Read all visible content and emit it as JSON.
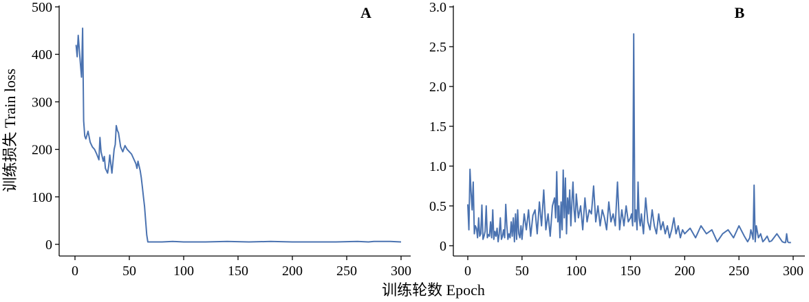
{
  "chart_data": [
    {
      "type": "line",
      "panel_label": "A",
      "ylabel": "训练损失 Train loss",
      "xlim": [
        0,
        300
      ],
      "ylim": [
        0,
        500
      ],
      "xticks": [
        0,
        50,
        100,
        150,
        200,
        250,
        300
      ],
      "yticks": [
        0,
        100,
        200,
        300,
        400,
        500
      ],
      "grid": false,
      "color": "#4a72b0",
      "x": [
        1,
        2,
        3,
        4,
        5,
        6,
        7,
        8,
        9,
        10,
        12,
        14,
        16,
        18,
        20,
        22,
        23,
        24,
        26,
        27,
        28,
        30,
        31,
        32,
        34,
        36,
        37,
        38,
        39,
        40,
        42,
        44,
        46,
        48,
        50,
        52,
        54,
        55,
        56,
        57,
        58,
        59,
        60,
        61,
        62,
        63,
        64,
        65,
        66,
        67,
        68,
        70,
        80,
        90,
        100,
        120,
        140,
        160,
        180,
        200,
        220,
        240,
        260,
        270,
        275,
        280,
        290,
        300
      ],
      "y": [
        420,
        395,
        440,
        410,
        380,
        352,
        455,
        260,
        228,
        222,
        238,
        215,
        205,
        200,
        190,
        178,
        225,
        195,
        175,
        185,
        160,
        150,
        165,
        188,
        150,
        200,
        210,
        250,
        240,
        235,
        205,
        195,
        208,
        200,
        195,
        190,
        180,
        175,
        170,
        160,
        175,
        165,
        155,
        140,
        120,
        100,
        80,
        50,
        20,
        5,
        5,
        5,
        5,
        6,
        5,
        5,
        6,
        5,
        6,
        5,
        5,
        5,
        6,
        5,
        6,
        6,
        6,
        5
      ]
    },
    {
      "type": "line",
      "panel_label": "B",
      "xlabel": "训练轮数 Epoch",
      "xlim": [
        0,
        300
      ],
      "ylim": [
        0,
        3.0
      ],
      "xticks": [
        0,
        50,
        100,
        150,
        200,
        250,
        300
      ],
      "yticks": [
        "0",
        "0.5",
        "1.0",
        "1.5",
        "2.0",
        "2.5",
        "3.0"
      ],
      "grid": false,
      "color": "#4a72b0",
      "x": [
        0,
        1,
        2,
        3,
        4,
        5,
        6,
        7,
        8,
        9,
        10,
        11,
        12,
        13,
        14,
        15,
        16,
        17,
        18,
        19,
        20,
        21,
        22,
        23,
        24,
        25,
        26,
        27,
        28,
        29,
        30,
        31,
        32,
        33,
        34,
        35,
        36,
        37,
        38,
        39,
        40,
        41,
        42,
        43,
        44,
        45,
        46,
        47,
        48,
        49,
        50,
        52,
        54,
        56,
        58,
        60,
        62,
        64,
        66,
        68,
        70,
        72,
        74,
        76,
        78,
        80,
        81,
        82,
        83,
        84,
        85,
        86,
        87,
        88,
        89,
        90,
        91,
        92,
        93,
        94,
        95,
        96,
        97,
        98,
        99,
        100,
        102,
        104,
        106,
        108,
        110,
        112,
        114,
        116,
        118,
        120,
        122,
        124,
        126,
        128,
        130,
        132,
        134,
        136,
        138,
        140,
        142,
        144,
        146,
        148,
        150,
        151,
        152,
        153,
        154,
        155,
        156,
        157,
        158,
        159,
        160,
        162,
        164,
        166,
        168,
        170,
        172,
        174,
        176,
        178,
        180,
        182,
        184,
        186,
        188,
        190,
        192,
        194,
        196,
        198,
        200,
        205,
        210,
        215,
        220,
        225,
        230,
        235,
        240,
        245,
        250,
        255,
        258,
        260,
        261,
        262,
        263,
        264,
        265,
        266,
        268,
        270,
        272,
        274,
        276,
        278,
        280,
        285,
        290,
        292,
        293,
        294,
        295,
        296,
        297,
        298
      ],
      "y": [
        0.52,
        0.2,
        0.96,
        0.68,
        0.45,
        0.8,
        0.15,
        0.25,
        0.22,
        0.1,
        0.35,
        0.12,
        0.15,
        0.51,
        0.08,
        0.12,
        0.18,
        0.5,
        0.1,
        0.14,
        0.12,
        0.3,
        0.1,
        0.45,
        0.08,
        0.18,
        0.12,
        0.22,
        0.05,
        0.15,
        0.35,
        0.08,
        0.12,
        0.2,
        0.1,
        0.52,
        0.25,
        0.08,
        0.15,
        0.1,
        0.3,
        0.12,
        0.35,
        0.05,
        0.4,
        0.08,
        0.45,
        0.15,
        0.1,
        0.25,
        0.08,
        0.4,
        0.2,
        0.45,
        0.12,
        0.38,
        0.45,
        0.15,
        0.55,
        0.25,
        0.7,
        0.2,
        0.4,
        0.12,
        0.5,
        0.6,
        0.35,
        0.93,
        0.3,
        0.5,
        0.1,
        0.55,
        0.2,
        0.95,
        0.35,
        0.85,
        0.15,
        0.6,
        0.4,
        0.7,
        0.25,
        0.55,
        0.8,
        0.45,
        0.3,
        0.65,
        0.35,
        0.5,
        0.2,
        0.6,
        0.3,
        0.45,
        0.4,
        0.75,
        0.3,
        0.5,
        0.25,
        0.45,
        0.35,
        0.2,
        0.55,
        0.3,
        0.4,
        0.25,
        0.8,
        0.2,
        0.45,
        0.25,
        0.5,
        0.3,
        0.35,
        0.4,
        0.25,
        2.66,
        0.3,
        0.45,
        0.2,
        0.8,
        0.35,
        0.25,
        0.4,
        0.15,
        0.6,
        0.3,
        0.2,
        0.45,
        0.25,
        0.15,
        0.4,
        0.2,
        0.3,
        0.15,
        0.25,
        0.1,
        0.2,
        0.35,
        0.15,
        0.25,
        0.1,
        0.2,
        0.15,
        0.22,
        0.1,
        0.25,
        0.15,
        0.2,
        0.05,
        0.15,
        0.2,
        0.1,
        0.25,
        0.12,
        0.05,
        0.1,
        0.2,
        0.15,
        0.08,
        0.76,
        0.05,
        0.25,
        0.1,
        0.15,
        0.05,
        0.08,
        0.12,
        0.05,
        0.06,
        0.15,
        0.05,
        0.04,
        0.04,
        0.15,
        0.05,
        0.04,
        0.04,
        0.04
      ]
    }
  ]
}
